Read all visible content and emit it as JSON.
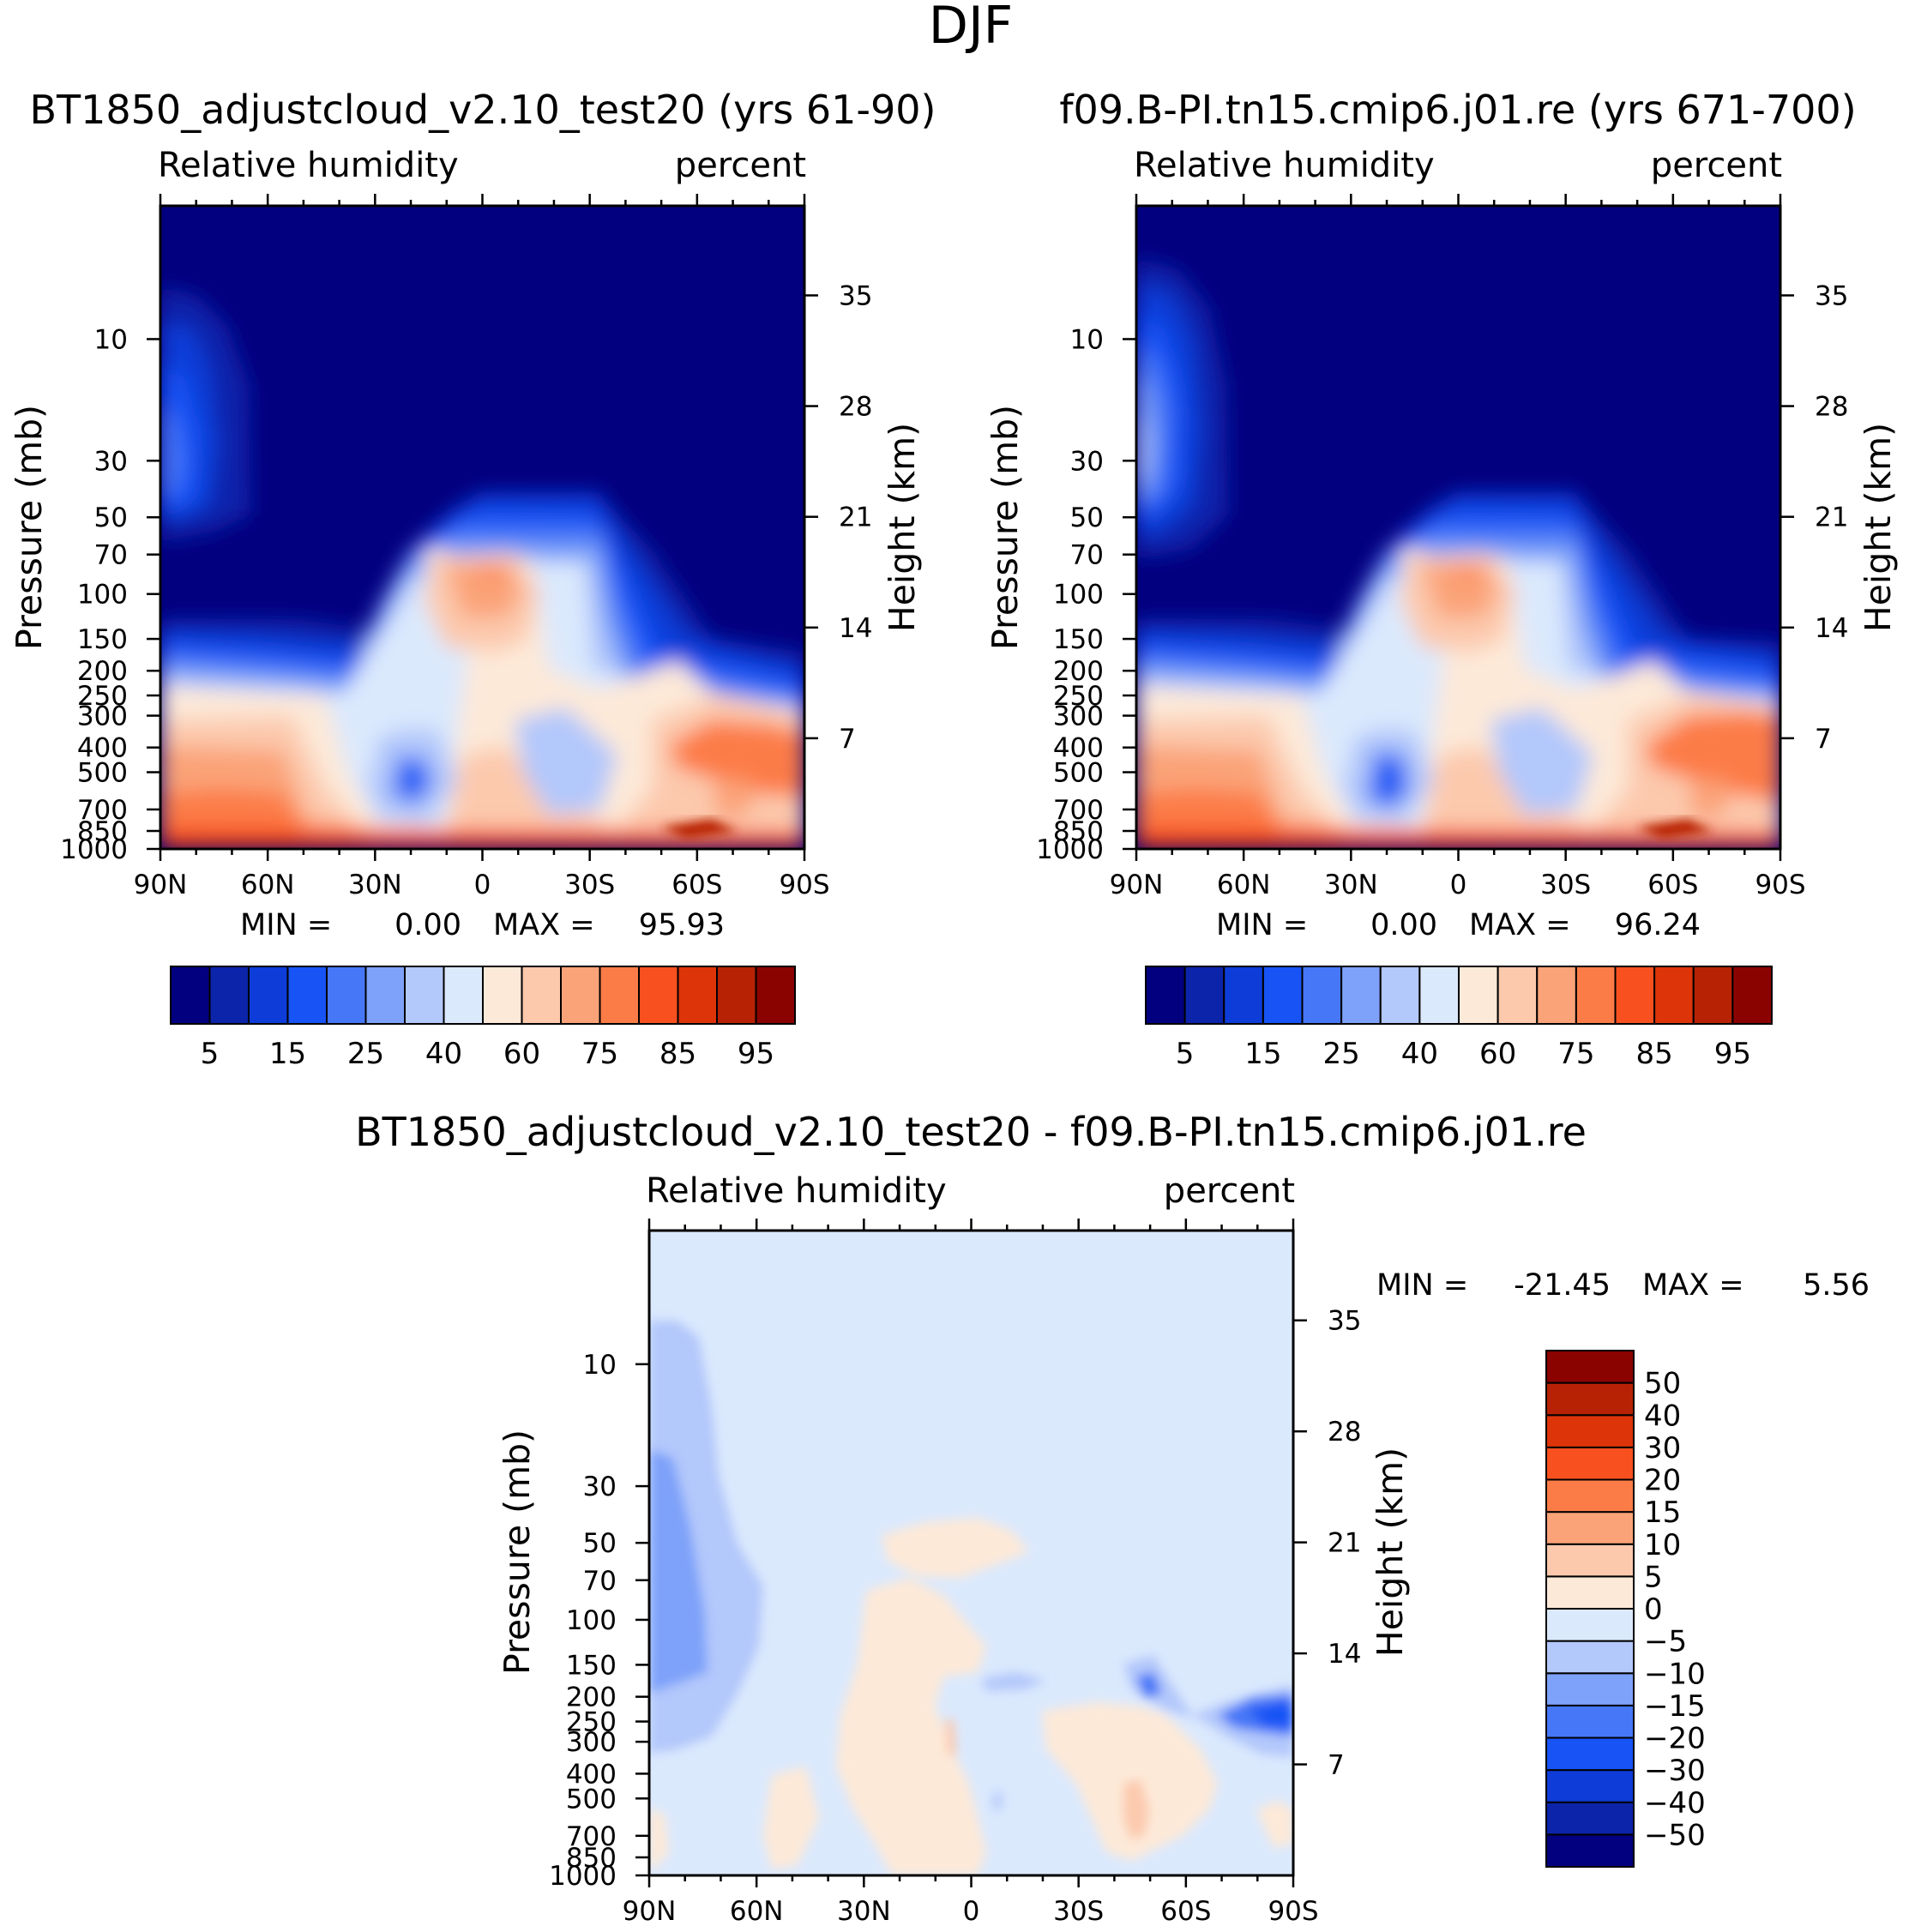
{
  "figure_title": "DJF",
  "panels": [
    {
      "title": "BT1850_adjustcloud_v2.10_test20 (yrs 61-90)",
      "variable": "Relative humidity",
      "units": "percent",
      "ylabel_left": "Pressure (mb)",
      "ylabel_right": "Height (km)",
      "min_label": "MIN =",
      "min_value": "0.00",
      "max_label": "MAX =",
      "max_value": "95.93"
    },
    {
      "title": "f09.B-PI.tn15.cmip6.j01.re (yrs 671-700)",
      "variable": "Relative humidity",
      "units": "percent",
      "ylabel_left": "Pressure (mb)",
      "ylabel_right": "Height (km)",
      "min_label": "MIN =",
      "min_value": "0.00",
      "max_label": "MAX =",
      "max_value": "96.24"
    },
    {
      "title": "BT1850_adjustcloud_v2.10_test20 - f09.B-PI.tn15.cmip6.j01.re",
      "variable": "Relative humidity",
      "units": "percent",
      "ylabel_left": "Pressure (mb)",
      "ylabel_right": "Height (km)",
      "min_label": "MIN =",
      "min_value": "-21.45",
      "max_label": "MAX =",
      "max_value": "5.56"
    }
  ],
  "axes": {
    "x_ticks": [
      "90N",
      "60N",
      "30N",
      "0",
      "30S",
      "60S",
      "90S"
    ],
    "x_values": [
      90,
      60,
      30,
      0,
      -30,
      -60,
      -90
    ],
    "pressure_ticks": [
      10,
      30,
      50,
      70,
      100,
      150,
      200,
      250,
      300,
      400,
      500,
      700,
      850,
      1000
    ],
    "pressure_range": [
      3,
      1000
    ],
    "height_ticks": [
      35,
      28,
      21,
      14,
      7
    ]
  },
  "colorbars": {
    "abs_colors": [
      "#03007f",
      "#0c24aa",
      "#0d3cd8",
      "#1753f5",
      "#4677f7",
      "#7ea2f9",
      "#b3c8fb",
      "#dbe9fd",
      "#fde9d8",
      "#fcc9ad",
      "#fba378",
      "#fc7c47",
      "#f9501f",
      "#de3409",
      "#b72205",
      "#8a0300"
    ],
    "abs_labels": [
      "5",
      "15",
      "25",
      "40",
      "60",
      "75",
      "85",
      "95"
    ],
    "diff_colors": [
      "#03007f",
      "#0c24aa",
      "#0d3cd8",
      "#1753f5",
      "#4677f7",
      "#7ea2f9",
      "#b3c8fb",
      "#dbe9fd",
      "#fde9d8",
      "#fcc9ad",
      "#fba378",
      "#fc7c47",
      "#f9501f",
      "#de3409",
      "#b72205",
      "#8a0300"
    ],
    "diff_labels": [
      "50",
      "40",
      "30",
      "20",
      "15",
      "10",
      "5",
      "0",
      "−5",
      "−10",
      "−15",
      "−20",
      "−30",
      "−40",
      "−50"
    ]
  },
  "chart_data": [
    {
      "type": "heatmap",
      "title": "BT1850_adjustcloud_v2.10_test20 (yrs 61-90)",
      "variable": "Relative humidity",
      "units": "percent",
      "xlabel": "",
      "ylabel": "Pressure (mb)",
      "ylabel_right": "Height (km)",
      "x": [
        90,
        60,
        30,
        0,
        -30,
        -60,
        -90
      ],
      "y_pressure": [
        10,
        30,
        50,
        70,
        100,
        150,
        200,
        250,
        300,
        400,
        500,
        700,
        850,
        1000
      ],
      "levels": [
        5,
        10,
        15,
        20,
        25,
        30,
        40,
        50,
        60,
        70,
        75,
        80,
        85,
        90,
        95
      ],
      "min": 0.0,
      "max": 95.93,
      "features": [
        {
          "lat": 85,
          "p": 30,
          "value": 30
        },
        {
          "lat": 0,
          "p": 100,
          "value": 75
        },
        {
          "lat": -20,
          "p": 500,
          "value": 35
        },
        {
          "lat": 20,
          "p": 500,
          "value": 20
        },
        {
          "lat": -60,
          "p": 950,
          "value": 90
        }
      ]
    },
    {
      "type": "heatmap",
      "title": "f09.B-PI.tn15.cmip6.j01.re (yrs 671-700)",
      "variable": "Relative humidity",
      "units": "percent",
      "xlabel": "",
      "ylabel": "Pressure (mb)",
      "ylabel_right": "Height (km)",
      "x": [
        90,
        60,
        30,
        0,
        -30,
        -60,
        -90
      ],
      "y_pressure": [
        10,
        30,
        50,
        70,
        100,
        150,
        200,
        250,
        300,
        400,
        500,
        700,
        850,
        1000
      ],
      "levels": [
        5,
        10,
        15,
        20,
        25,
        30,
        40,
        50,
        60,
        70,
        75,
        80,
        85,
        90,
        95
      ],
      "min": 0.0,
      "max": 96.24,
      "features": [
        {
          "lat": 85,
          "p": 40,
          "value": 40
        },
        {
          "lat": 0,
          "p": 100,
          "value": 75
        },
        {
          "lat": -20,
          "p": 500,
          "value": 35
        },
        {
          "lat": 20,
          "p": 500,
          "value": 20
        },
        {
          "lat": -60,
          "p": 950,
          "value": 90
        }
      ]
    },
    {
      "type": "heatmap",
      "title": "BT1850_adjustcloud_v2.10_test20 - f09.B-PI.tn15.cmip6.j01.re",
      "variable": "Relative humidity",
      "units": "percent",
      "xlabel": "",
      "ylabel": "Pressure (mb)",
      "ylabel_right": "Height (km)",
      "x": [
        90,
        60,
        30,
        0,
        -30,
        -60,
        -90
      ],
      "y_pressure": [
        10,
        30,
        50,
        70,
        100,
        150,
        200,
        250,
        300,
        400,
        500,
        700,
        850,
        1000
      ],
      "levels": [
        -50,
        -40,
        -30,
        -20,
        -15,
        -10,
        -5,
        0,
        5,
        10,
        15,
        20,
        30,
        40,
        50
      ],
      "min": -21.45,
      "max": 5.56,
      "features": [
        {
          "lat": 87,
          "p": 70,
          "value": -12
        },
        {
          "lat": -85,
          "p": 270,
          "value": -20
        },
        {
          "lat": 10,
          "p": 300,
          "value": 3
        },
        {
          "lat": -50,
          "p": 500,
          "value": 3
        }
      ]
    }
  ]
}
